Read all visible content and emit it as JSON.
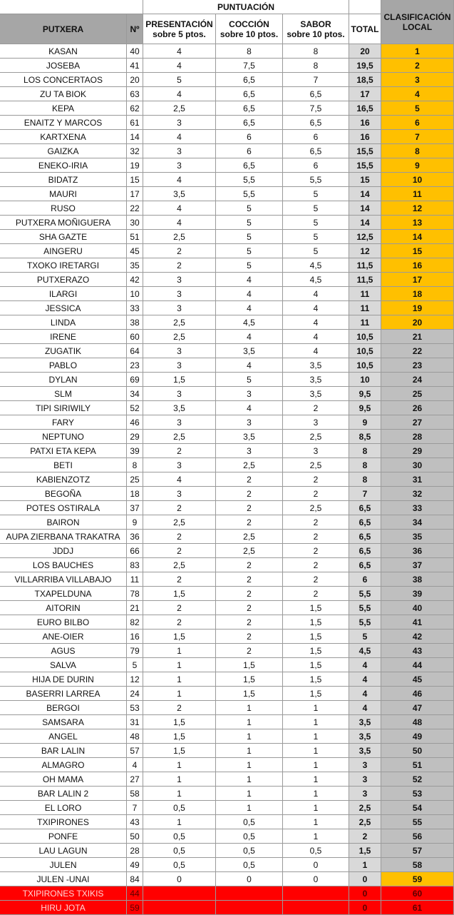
{
  "header": {
    "group": "PUNTUACIÓN",
    "columns": [
      "PUTXERA",
      "Nº",
      [
        "PRESENTACIÓN",
        "sobre 5 ptos."
      ],
      [
        "COCCIÓN",
        "sobre 10 ptos."
      ],
      [
        "SABOR",
        "sobre 10 ptos."
      ],
      "TOTAL",
      [
        "CLASIFICACIÓN",
        "LOCAL"
      ]
    ]
  },
  "table": {
    "rows": [
      {
        "cells": [
          "KASAN",
          "40",
          "4",
          "8",
          "8",
          "20",
          "1"
        ],
        "rank_color": "#ffc000"
      },
      {
        "cells": [
          "JOSEBA",
          "41",
          "4",
          "7,5",
          "8",
          "19,5",
          "2"
        ],
        "rank_color": "#ffc000"
      },
      {
        "cells": [
          "LOS CONCERTAOS",
          "20",
          "5",
          "6,5",
          "7",
          "18,5",
          "3"
        ],
        "rank_color": "#ffc000"
      },
      {
        "cells": [
          "ZU TA BIOK",
          "63",
          "4",
          "6,5",
          "6,5",
          "17",
          "4"
        ],
        "rank_color": "#ffc000"
      },
      {
        "cells": [
          "KEPA",
          "62",
          "2,5",
          "6,5",
          "7,5",
          "16,5",
          "5"
        ],
        "rank_color": "#ffc000"
      },
      {
        "cells": [
          "ENAITZ Y MARCOS",
          "61",
          "3",
          "6,5",
          "6,5",
          "16",
          "6"
        ],
        "rank_color": "#ffc000"
      },
      {
        "cells": [
          "KARTXENA",
          "14",
          "4",
          "6",
          "6",
          "16",
          "7"
        ],
        "rank_color": "#ffc000"
      },
      {
        "cells": [
          "GAIZKA",
          "32",
          "3",
          "6",
          "6,5",
          "15,5",
          "8"
        ],
        "rank_color": "#ffc000"
      },
      {
        "cells": [
          "ENEKO-IRIA",
          "19",
          "3",
          "6,5",
          "6",
          "15,5",
          "9"
        ],
        "rank_color": "#ffc000"
      },
      {
        "cells": [
          "BIDATZ",
          "15",
          "4",
          "5,5",
          "5,5",
          "15",
          "10"
        ],
        "rank_color": "#ffc000"
      },
      {
        "cells": [
          "MAURI",
          "17",
          "3,5",
          "5,5",
          "5",
          "14",
          "11"
        ],
        "rank_color": "#ffc000"
      },
      {
        "cells": [
          "RUSO",
          "22",
          "4",
          "5",
          "5",
          "14",
          "12"
        ],
        "rank_color": "#ffc000"
      },
      {
        "cells": [
          "PUTXERA MOÑIGUERA",
          "30",
          "4",
          "5",
          "5",
          "14",
          "13"
        ],
        "rank_color": "#ffc000"
      },
      {
        "cells": [
          "SHA GAZTE",
          "51",
          "2,5",
          "5",
          "5",
          "12,5",
          "14"
        ],
        "rank_color": "#ffc000"
      },
      {
        "cells": [
          "AINGERU",
          "45",
          "2",
          "5",
          "5",
          "12",
          "15"
        ],
        "rank_color": "#ffc000"
      },
      {
        "cells": [
          "TXOKO IRETARGI",
          "35",
          "2",
          "5",
          "4,5",
          "11,5",
          "16"
        ],
        "rank_color": "#ffc000"
      },
      {
        "cells": [
          "PUTXERAZO",
          "42",
          "3",
          "4",
          "4,5",
          "11,5",
          "17"
        ],
        "rank_color": "#ffc000"
      },
      {
        "cells": [
          "ILARGI",
          "10",
          "3",
          "4",
          "4",
          "11",
          "18"
        ],
        "rank_color": "#ffc000"
      },
      {
        "cells": [
          "JESSICA",
          "33",
          "3",
          "4",
          "4",
          "11",
          "19"
        ],
        "rank_color": "#ffc000"
      },
      {
        "cells": [
          "LINDA",
          "38",
          "2,5",
          "4,5",
          "4",
          "11",
          "20"
        ],
        "rank_color": "#ffc000"
      },
      {
        "cells": [
          "IRENE",
          "60",
          "2,5",
          "4",
          "4",
          "10,5",
          "21"
        ],
        "rank_color": "#bfbfbf"
      },
      {
        "cells": [
          "ZUGATIK",
          "64",
          "3",
          "3,5",
          "4",
          "10,5",
          "22"
        ],
        "rank_color": "#bfbfbf"
      },
      {
        "cells": [
          "PABLO",
          "23",
          "3",
          "4",
          "3,5",
          "10,5",
          "23"
        ],
        "rank_color": "#bfbfbf"
      },
      {
        "cells": [
          "DYLAN",
          "69",
          "1,5",
          "5",
          "3,5",
          "10",
          "24"
        ],
        "rank_color": "#bfbfbf"
      },
      {
        "cells": [
          "SLM",
          "34",
          "3",
          "3",
          "3,5",
          "9,5",
          "25"
        ],
        "rank_color": "#bfbfbf"
      },
      {
        "cells": [
          "TIPI SIRIWILY",
          "52",
          "3,5",
          "4",
          "2",
          "9,5",
          "26"
        ],
        "rank_color": "#bfbfbf"
      },
      {
        "cells": [
          "FARY",
          "46",
          "3",
          "3",
          "3",
          "9",
          "27"
        ],
        "rank_color": "#bfbfbf"
      },
      {
        "cells": [
          "NEPTUNO",
          "29",
          "2,5",
          "3,5",
          "2,5",
          "8,5",
          "28"
        ],
        "rank_color": "#bfbfbf"
      },
      {
        "cells": [
          "PATXI ETA KEPA",
          "39",
          "2",
          "3",
          "3",
          "8",
          "29"
        ],
        "rank_color": "#bfbfbf"
      },
      {
        "cells": [
          "BETI",
          "8",
          "3",
          "2,5",
          "2,5",
          "8",
          "30"
        ],
        "rank_color": "#bfbfbf"
      },
      {
        "cells": [
          "KABIENZOTZ",
          "25",
          "4",
          "2",
          "2",
          "8",
          "31"
        ],
        "rank_color": "#bfbfbf"
      },
      {
        "cells": [
          "BEGOÑA",
          "18",
          "3",
          "2",
          "2",
          "7",
          "32"
        ],
        "rank_color": "#bfbfbf"
      },
      {
        "cells": [
          "POTES OSTIRALA",
          "37",
          "2",
          "2",
          "2,5",
          "6,5",
          "33"
        ],
        "rank_color": "#bfbfbf"
      },
      {
        "cells": [
          "BAIRON",
          "9",
          "2,5",
          "2",
          "2",
          "6,5",
          "34"
        ],
        "rank_color": "#bfbfbf"
      },
      {
        "cells": [
          "AUPA ZIERBANA TRAKATRA",
          "36",
          "2",
          "2,5",
          "2",
          "6,5",
          "35"
        ],
        "rank_color": "#bfbfbf"
      },
      {
        "cells": [
          "JDDJ",
          "66",
          "2",
          "2,5",
          "2",
          "6,5",
          "36"
        ],
        "rank_color": "#bfbfbf"
      },
      {
        "cells": [
          "LOS BAUCHES",
          "83",
          "2,5",
          "2",
          "2",
          "6,5",
          "37"
        ],
        "rank_color": "#bfbfbf"
      },
      {
        "cells": [
          "VILLARRIBA VILLABAJO",
          "11",
          "2",
          "2",
          "2",
          "6",
          "38"
        ],
        "rank_color": "#bfbfbf"
      },
      {
        "cells": [
          "TXAPELDUNA",
          "78",
          "1,5",
          "2",
          "2",
          "5,5",
          "39"
        ],
        "rank_color": "#bfbfbf"
      },
      {
        "cells": [
          "AITORIN",
          "21",
          "2",
          "2",
          "1,5",
          "5,5",
          "40"
        ],
        "rank_color": "#bfbfbf"
      },
      {
        "cells": [
          "EURO BILBO",
          "82",
          "2",
          "2",
          "1,5",
          "5,5",
          "41"
        ],
        "rank_color": "#bfbfbf"
      },
      {
        "cells": [
          "ANE-OIER",
          "16",
          "1,5",
          "2",
          "1,5",
          "5",
          "42"
        ],
        "rank_color": "#bfbfbf"
      },
      {
        "cells": [
          "AGUS",
          "79",
          "1",
          "2",
          "1,5",
          "4,5",
          "43"
        ],
        "rank_color": "#bfbfbf"
      },
      {
        "cells": [
          "SALVA",
          "5",
          "1",
          "1,5",
          "1,5",
          "4",
          "44"
        ],
        "rank_color": "#bfbfbf"
      },
      {
        "cells": [
          "HIJA DE DURIN",
          "12",
          "1",
          "1,5",
          "1,5",
          "4",
          "45"
        ],
        "rank_color": "#bfbfbf"
      },
      {
        "cells": [
          "BASERRI LARREA",
          "24",
          "1",
          "1,5",
          "1,5",
          "4",
          "46"
        ],
        "rank_color": "#bfbfbf"
      },
      {
        "cells": [
          "BERGOI",
          "53",
          "2",
          "1",
          "1",
          "4",
          "47"
        ],
        "rank_color": "#bfbfbf"
      },
      {
        "cells": [
          "SAMSARA",
          "31",
          "1,5",
          "1",
          "1",
          "3,5",
          "48"
        ],
        "rank_color": "#bfbfbf"
      },
      {
        "cells": [
          "ANGEL",
          "48",
          "1,5",
          "1",
          "1",
          "3,5",
          "49"
        ],
        "rank_color": "#bfbfbf"
      },
      {
        "cells": [
          "BAR LALIN",
          "57",
          "1,5",
          "1",
          "1",
          "3,5",
          "50"
        ],
        "rank_color": "#bfbfbf"
      },
      {
        "cells": [
          "ALMAGRO",
          "4",
          "1",
          "1",
          "1",
          "3",
          "51"
        ],
        "rank_color": "#bfbfbf"
      },
      {
        "cells": [
          "OH MAMA",
          "27",
          "1",
          "1",
          "1",
          "3",
          "52"
        ],
        "rank_color": "#bfbfbf"
      },
      {
        "cells": [
          "BAR LALIN 2",
          "58",
          "1",
          "1",
          "1",
          "3",
          "53"
        ],
        "rank_color": "#bfbfbf"
      },
      {
        "cells": [
          "EL LORO",
          "7",
          "0,5",
          "1",
          "1",
          "2,5",
          "54"
        ],
        "rank_color": "#bfbfbf"
      },
      {
        "cells": [
          "TXIPIRONES",
          "43",
          "1",
          "0,5",
          "1",
          "2,5",
          "55"
        ],
        "rank_color": "#bfbfbf"
      },
      {
        "cells": [
          "PONFE",
          "50",
          "0,5",
          "0,5",
          "1",
          "2",
          "56"
        ],
        "rank_color": "#bfbfbf"
      },
      {
        "cells": [
          "LAU LAGUN",
          "28",
          "0,5",
          "0,5",
          "0,5",
          "1,5",
          "57"
        ],
        "rank_color": "#bfbfbf"
      },
      {
        "cells": [
          "JULEN",
          "49",
          "0,5",
          "0,5",
          "0",
          "1",
          "58"
        ],
        "rank_color": "#bfbfbf"
      },
      {
        "cells": [
          "JULEN -UNAI",
          "84",
          "0",
          "0",
          "0",
          "0",
          "59"
        ],
        "rank_color": "#ffc000"
      },
      {
        "cells": [
          "TXIPIRONES TXIKIS",
          "44",
          null,
          null,
          null,
          "0",
          "60"
        ],
        "row_color": "#ff0000"
      },
      {
        "cells": [
          "HIRU JOTA",
          "59",
          null,
          null,
          null,
          "0",
          "61"
        ],
        "row_color": "#ff0000"
      }
    ]
  }
}
